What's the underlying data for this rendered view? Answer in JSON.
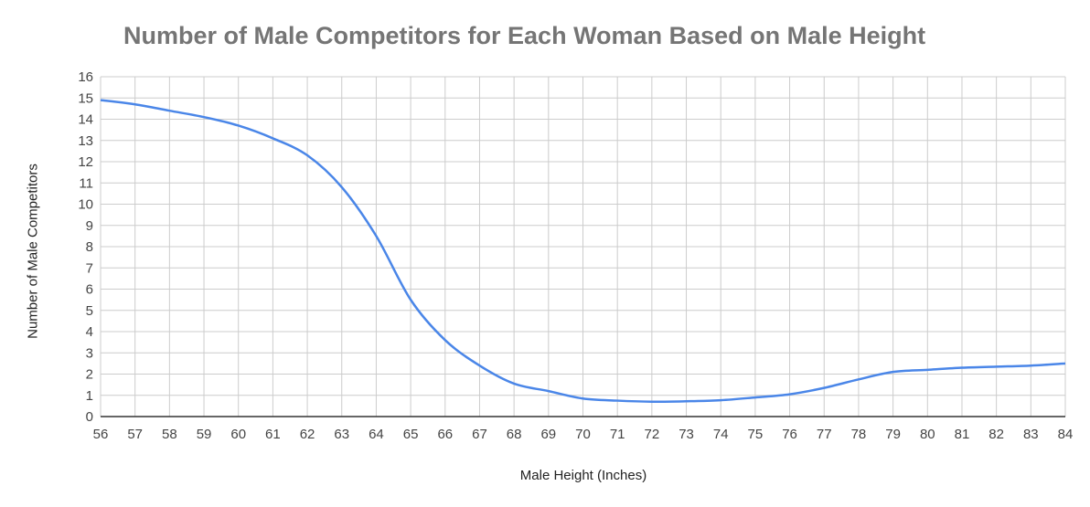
{
  "chart_data": {
    "type": "line",
    "title": "Number of Male Competitors for Each Woman Based on Male Height",
    "xlabel": "Male Height (Inches)",
    "ylabel": "Number of Male Competitors",
    "xlim": [
      56,
      84
    ],
    "ylim": [
      0,
      16
    ],
    "x_ticks": [
      "56",
      "57",
      "58",
      "59",
      "60",
      "61",
      "62",
      "63",
      "64",
      "65",
      "66",
      "67",
      "68",
      "69",
      "70",
      "71",
      "72",
      "73",
      "74",
      "75",
      "76",
      "77",
      "78",
      "79",
      "80",
      "81",
      "82",
      "83",
      "84"
    ],
    "y_ticks": [
      "0",
      "1",
      "2",
      "3",
      "4",
      "5",
      "6",
      "7",
      "8",
      "9",
      "10",
      "11",
      "12",
      "13",
      "14",
      "15",
      "16"
    ],
    "grid": true,
    "line_color": "#4a86e8",
    "series": [
      {
        "x": [
          56,
          57,
          58,
          59,
          60,
          61,
          62,
          63,
          64,
          65,
          66,
          67,
          68,
          69,
          70,
          71,
          72,
          73,
          74,
          75,
          76,
          77,
          78,
          79,
          80,
          81,
          82,
          83,
          84
        ],
        "values": [
          14.9,
          14.7,
          14.4,
          14.1,
          13.7,
          13.1,
          12.3,
          10.8,
          8.5,
          5.5,
          3.6,
          2.4,
          1.55,
          1.2,
          0.85,
          0.75,
          0.7,
          0.72,
          0.77,
          0.9,
          1.05,
          1.35,
          1.75,
          2.1,
          2.2,
          2.3,
          2.35,
          2.4,
          2.5
        ]
      }
    ]
  }
}
